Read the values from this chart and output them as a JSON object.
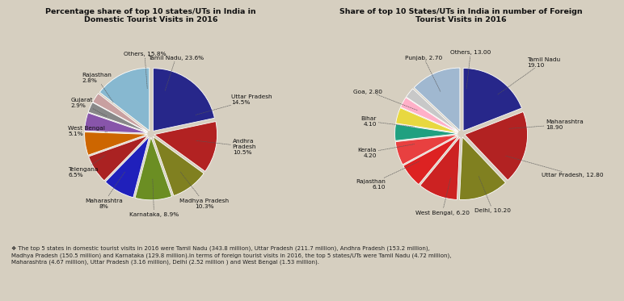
{
  "bg_color": "#d6cfc0",
  "title1": "Percentage share of top 10 states/UTs in India in\nDomestic Tourist Visits in 2016",
  "title2": "Share of top 10 States/UTs in India in number of Foreign\nTourist Visits in 2016",
  "footnote": "❖ The top 5 states in domestic tourist visits in 2016 were Tamil Nadu (343.8 million), Uttar Pradesh (211.7 million), Andhra Pradesh (153.2 million),\nMadhya Pradesh (150.5 million) and Karnataka (129.8 million).In terms of foreign tourist visits in 2016, the top 5 states/UTs were Tamil Nadu (4.72 million),\nMaharashtra (4.67 million), Uttar Pradesh (3.16 million), Delhi (2.52 million ) and West Bengal (1.53 million).",
  "pie1_values": [
    23.6,
    14.5,
    10.5,
    10.3,
    8.9,
    8.0,
    6.5,
    5.1,
    2.9,
    2.8,
    15.8
  ],
  "pie1_colors": [
    "#27278a",
    "#b22222",
    "#808020",
    "#6b8e23",
    "#2020bb",
    "#aa2222",
    "#cd6600",
    "#8855aa",
    "#888888",
    "#c8a0a0",
    "#87b8d0"
  ],
  "pie1_startangle": 90,
  "pie1_label_data": [
    [
      "Tamil Nadu, 23.6%",
      0.4,
      1.22,
      "center"
    ],
    [
      "Uttar Pradesh\n14.5%",
      1.28,
      0.55,
      "left"
    ],
    [
      "Andhra\nPradesh\n10.5%",
      1.3,
      -0.2,
      "left"
    ],
    [
      "Madhya Pradesh\n10.3%",
      0.85,
      -1.1,
      "center"
    ],
    [
      "Karnataka, 8.9%",
      0.05,
      -1.28,
      "center"
    ],
    [
      "Maharashtra\n8%",
      -0.75,
      -1.1,
      "center"
    ],
    [
      "Telengana\n6.5%",
      -1.32,
      -0.6,
      "left"
    ],
    [
      "West Bengal\n5.1%",
      -1.32,
      0.05,
      "left"
    ],
    [
      "Gujarat\n2.9%",
      -1.28,
      0.5,
      "left"
    ],
    [
      "Rajasthan\n2.8%",
      -1.1,
      0.9,
      "left"
    ],
    [
      "Others, 15.8%",
      -0.1,
      1.28,
      "center"
    ]
  ],
  "pie2_values": [
    19.1,
    18.9,
    12.8,
    10.2,
    6.2,
    6.1,
    4.2,
    4.1,
    2.8,
    2.7,
    13.0
  ],
  "pie2_colors": [
    "#27278a",
    "#b22222",
    "#808020",
    "#cc2222",
    "#dd2222",
    "#e84040",
    "#20a080",
    "#e8d840",
    "#ffb0c8",
    "#c8c8c8",
    "#a0b8d0"
  ],
  "pie2_startangle": 90,
  "pie2_label_data": [
    [
      "Tamil Nadu\n19.10",
      1.05,
      1.15,
      "left"
    ],
    [
      "Maharashtra\n18.90",
      1.35,
      0.15,
      "left"
    ],
    [
      "Uttar Pradesh, 12.80",
      1.28,
      -0.65,
      "left"
    ],
    [
      "Delhi, 10.20",
      0.5,
      -1.22,
      "center"
    ],
    [
      "West Bengal, 6.20",
      -0.3,
      -1.25,
      "center"
    ],
    [
      "Rajasthan\n6.10",
      -1.2,
      -0.8,
      "right"
    ],
    [
      "Kerala\n4.20",
      -1.35,
      -0.3,
      "right"
    ],
    [
      "Bihar\n4.10",
      -1.35,
      0.2,
      "right"
    ],
    [
      "Goa, 2.80",
      -1.25,
      0.68,
      "right"
    ],
    [
      "Punjab, 2.70",
      -0.6,
      1.22,
      "center"
    ],
    [
      "Others, 13.00",
      0.15,
      1.3,
      "center"
    ]
  ]
}
